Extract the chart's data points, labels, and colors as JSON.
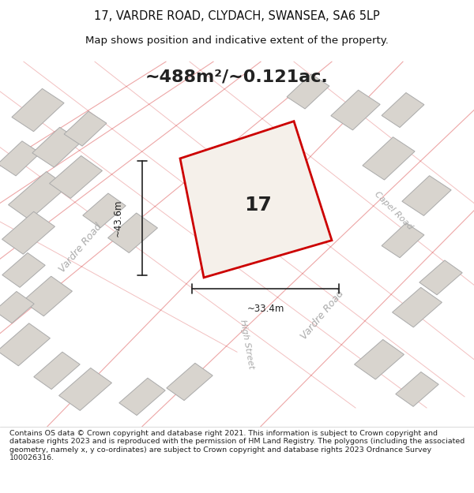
{
  "title_line1": "17, VARDRE ROAD, CLYDACH, SWANSEA, SA6 5LP",
  "title_line2": "Map shows position and indicative extent of the property.",
  "area_text": "~488m²/~0.121ac.",
  "label_17": "17",
  "dim_vertical": "~43.6m",
  "dim_horizontal": "~33.4m",
  "road_label1": "Vardre Road",
  "road_label2": "Vardre Road",
  "road_label3": "Capel Road",
  "road_label4": "High Street",
  "footer_text": "Contains OS data © Crown copyright and database right 2021. This information is subject to Crown copyright and database rights 2023 and is reproduced with the permission of HM Land Registry. The polygons (including the associated geometry, namely x, y co-ordinates) are subject to Crown copyright and database rights 2023 Ordnance Survey 100026316.",
  "bg_color": "#f0eeeb",
  "map_bg": "#e8e5e0",
  "property_fill": "#f5f0ea",
  "property_edge": "#cc0000",
  "road_line_color": "#cc0000",
  "road_line_alpha": 0.4,
  "building_fill": "#d8d4ce",
  "building_edge": "#aaaaaa",
  "dim_line_color": "#222222",
  "text_color": "#333333",
  "road_text_color": "#aaaaaa"
}
